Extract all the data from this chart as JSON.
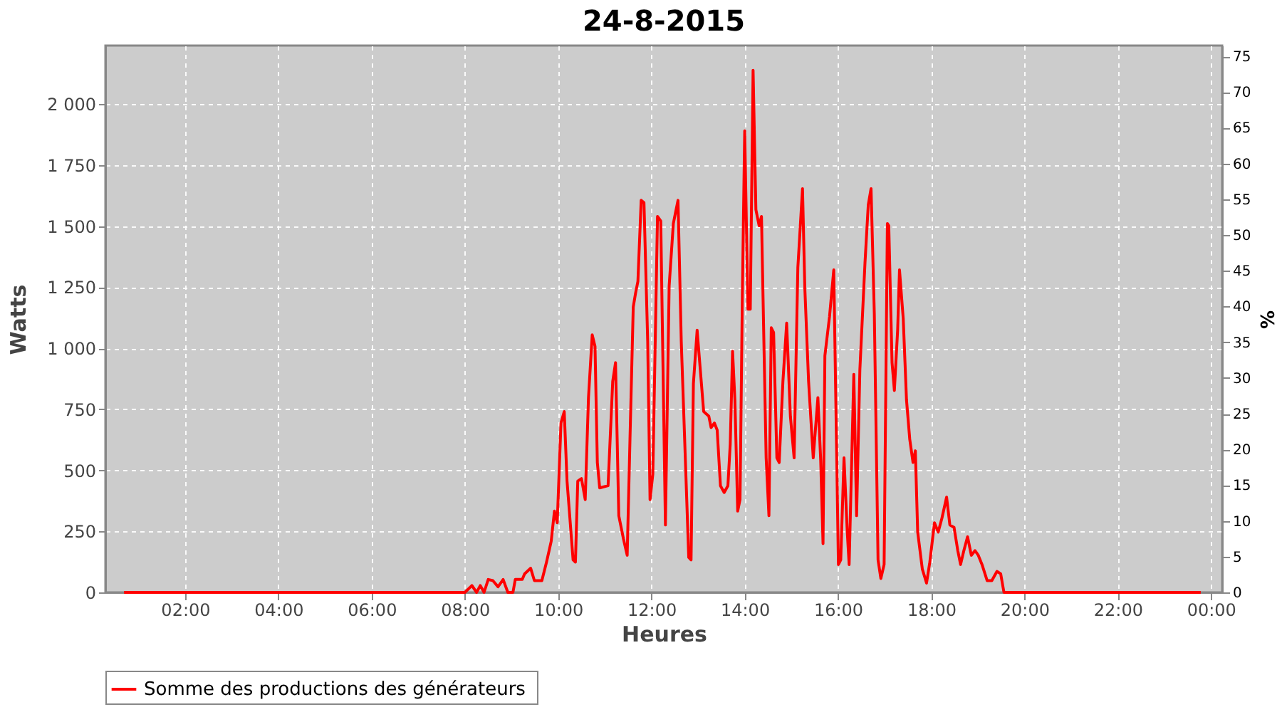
{
  "chart_data": {
    "type": "line",
    "title": "24-8-2015",
    "xlabel": "Heures",
    "ylabel": "Watts",
    "y2label": "%",
    "xlim": [
      0.29,
      24.24
    ],
    "xticks": [
      {
        "value": 2,
        "label": "02:00"
      },
      {
        "value": 4,
        "label": "04:00"
      },
      {
        "value": 6,
        "label": "06:00"
      },
      {
        "value": 8,
        "label": "08:00"
      },
      {
        "value": 10,
        "label": "10:00"
      },
      {
        "value": 12,
        "label": "12:00"
      },
      {
        "value": 14,
        "label": "14:00"
      },
      {
        "value": 16,
        "label": "16:00"
      },
      {
        "value": 18,
        "label": "18:00"
      },
      {
        "value": 20,
        "label": "20:00"
      },
      {
        "value": 22,
        "label": "22:00"
      },
      {
        "value": 24,
        "label": "00:00"
      }
    ],
    "ylim": [
      0,
      2240
    ],
    "yticks": [
      0,
      250,
      500,
      750,
      {
        "value": 1000,
        "label": "1 000"
      },
      {
        "value": 1250,
        "label": "1 250"
      },
      {
        "value": 1500,
        "label": "1 500"
      },
      {
        "value": 1750,
        "label": "1 750"
      },
      {
        "value": 2000,
        "label": "2 000"
      }
    ],
    "y2lim": [
      0,
      76.5
    ],
    "y2ticks": [
      0,
      5,
      10,
      15,
      20,
      25,
      30,
      35,
      40,
      45,
      50,
      55,
      60,
      65,
      70,
      75
    ],
    "grid": true,
    "legend": "bottom",
    "marker": "none",
    "line_style": "solid",
    "series": [
      {
        "name": "Somme des productions des  générateurs",
        "color": "#ff0000",
        "x": [
          0.69,
          4.0,
          8.0,
          8.15,
          8.25,
          8.33,
          8.41,
          8.5,
          8.6,
          8.71,
          8.82,
          8.92,
          9.03,
          9.08,
          9.23,
          9.28,
          9.41,
          9.49,
          9.65,
          9.75,
          9.85,
          9.92,
          9.98,
          10.06,
          10.13,
          10.19,
          10.32,
          10.37,
          10.42,
          10.5,
          10.58,
          10.65,
          10.73,
          10.79,
          10.84,
          10.89,
          11.07,
          11.17,
          11.23,
          11.3,
          11.4,
          11.48,
          11.54,
          11.61,
          11.66,
          11.71,
          11.78,
          11.84,
          11.92,
          11.97,
          12.03,
          12.13,
          12.2,
          12.3,
          12.38,
          12.47,
          12.52,
          12.57,
          12.64,
          12.8,
          12.85,
          12.9,
          12.98,
          13.12,
          13.23,
          13.28,
          13.35,
          13.41,
          13.48,
          13.56,
          13.64,
          13.69,
          13.74,
          13.79,
          13.85,
          13.9,
          13.95,
          14.0,
          14.07,
          14.12,
          14.18,
          14.24,
          14.31,
          14.36,
          14.46,
          14.52,
          14.57,
          14.62,
          14.69,
          14.74,
          14.82,
          14.9,
          14.98,
          15.06,
          15.14,
          15.24,
          15.29,
          15.37,
          15.47,
          15.57,
          15.63,
          15.68,
          15.72,
          15.82,
          15.91,
          16.01,
          16.06,
          16.13,
          16.2,
          16.24,
          16.34,
          16.4,
          16.47,
          16.58,
          16.65,
          16.71,
          16.78,
          16.86,
          16.92,
          16.99,
          17.06,
          17.09,
          17.16,
          17.21,
          17.28,
          17.32,
          17.4,
          17.47,
          17.54,
          17.61,
          17.66,
          17.71,
          17.81,
          17.9,
          17.97,
          18.07,
          18.15,
          18.23,
          18.33,
          18.4,
          18.49,
          18.57,
          18.63,
          18.7,
          18.78,
          18.86,
          18.94,
          19.01,
          19.09,
          19.2,
          19.3,
          19.41,
          19.49,
          19.56,
          21.5,
          23.78
        ],
        "values": [
          0,
          0,
          0,
          28,
          0,
          28,
          0,
          53,
          48,
          23,
          53,
          0,
          0,
          53,
          53,
          76,
          99,
          48,
          48,
          124,
          209,
          333,
          285,
          694,
          741,
          456,
          133,
          124,
          456,
          466,
          380,
          798,
          1055,
          1008,
          532,
          428,
          437,
          865,
          941,
          314,
          219,
          152,
          627,
          1169,
          1226,
          1274,
          1606,
          1597,
          1027,
          380,
          485,
          1540,
          1521,
          276,
          1255,
          1511,
          1559,
          1606,
          1027,
          143,
          133,
          855,
          1074,
          741,
          722,
          675,
          694,
          665,
          437,
          409,
          437,
          608,
          988,
          789,
          333,
          380,
          1217,
          1891,
          1160,
          1160,
          2139,
          1568,
          1502,
          1540,
          551,
          314,
          1084,
          1065,
          551,
          532,
          865,
          1103,
          722,
          551,
          1331,
          1654,
          1245,
          865,
          551,
          798,
          542,
          200,
          970,
          1131,
          1321,
          114,
          133,
          551,
          247,
          114,
          893,
          314,
          912,
          1350,
          1587,
          1654,
          1141,
          133,
          57,
          114,
          1511,
          1502,
          941,
          827,
          1074,
          1321,
          1122,
          789,
          627,
          532,
          580,
          247,
          95,
          38,
          124,
          285,
          247,
          304,
          390,
          276,
          266,
          171,
          114,
          171,
          228,
          152,
          171,
          152,
          114,
          48,
          48,
          86,
          76,
          0,
          0,
          0
        ]
      }
    ]
  }
}
